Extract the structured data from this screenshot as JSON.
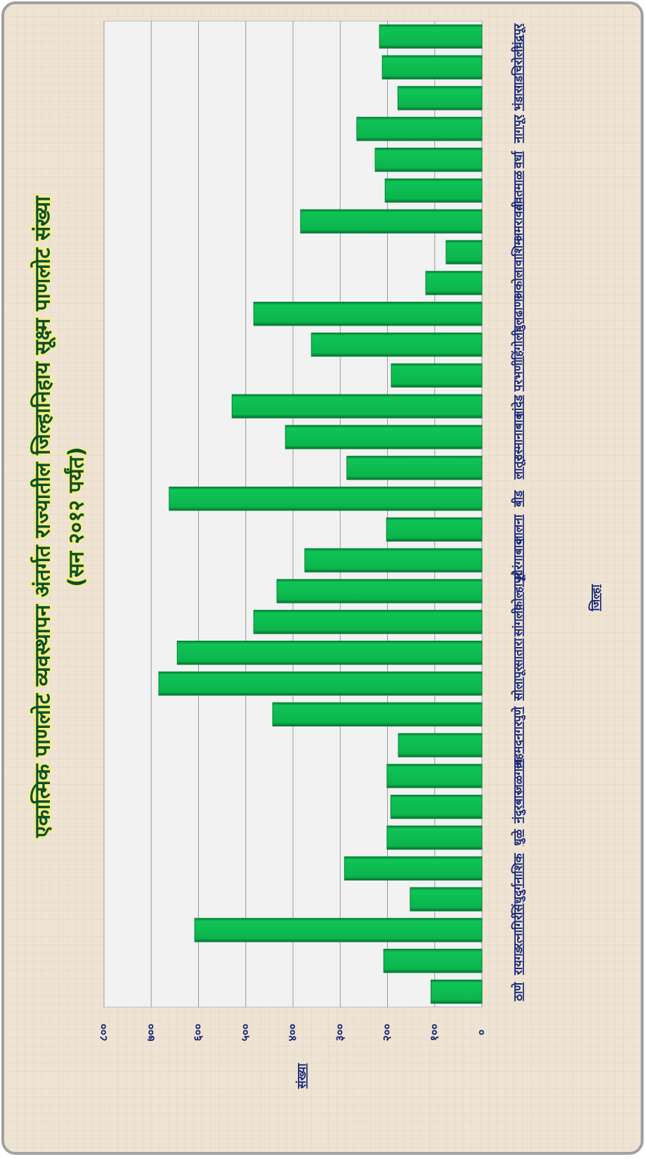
{
  "chart_data": {
    "type": "bar",
    "title": "एकात्मिक पाणलोट व्यवस्थापन अंतर्गत राज्यातील जिल्हानिहाय सूक्ष्म पाणलोट संख्या",
    "subtitle": "(सन २०१२ पर्यंत)",
    "x_label": "जिल्हा",
    "y_label": "संख्या",
    "categories": [
      "ठाणे",
      "रायगड",
      "रत्नागिरी",
      "सिंधुदुर्ग",
      "नाशिक",
      "धुळे",
      "नंदुरबार",
      "जळगाव",
      "अहमदनगर",
      "पुणे",
      "सोलापूर",
      "सातारा",
      "सांगली",
      "कोल्हापूर",
      "औरंगाबाद",
      "जालना",
      "बीड",
      "लातूर",
      "उस्मानाबाद",
      "नांदेड",
      "परभणी",
      "हिंगोली",
      "बुलढाणा",
      "अकोला",
      "वाशिम",
      "अमरावती",
      "यवतमाळ",
      "वर्धा",
      "नागपूर",
      "भंडारा",
      "गडचिरोली",
      "चंद्रपूर"
    ],
    "values": [
      108,
      208,
      608,
      152,
      291,
      201,
      193,
      201,
      177,
      443,
      684,
      645,
      483,
      434,
      375,
      202,
      662,
      286,
      416,
      529,
      192,
      361,
      483,
      119,
      76,
      384,
      205,
      226,
      265,
      178,
      211,
      217
    ],
    "color": "#0cb94f",
    "ylim": [
      0,
      800
    ],
    "yticks": [
      {
        "value": 0,
        "label": "०"
      },
      {
        "value": 100,
        "label": "१००"
      },
      {
        "value": 200,
        "label": "२००"
      },
      {
        "value": 300,
        "label": "३००"
      },
      {
        "value": 400,
        "label": "४००"
      },
      {
        "value": 500,
        "label": "५००"
      },
      {
        "value": 600,
        "label": "६००"
      },
      {
        "value": 700,
        "label": "७००"
      },
      {
        "value": 800,
        "label": "८००"
      }
    ],
    "grid": true
  }
}
